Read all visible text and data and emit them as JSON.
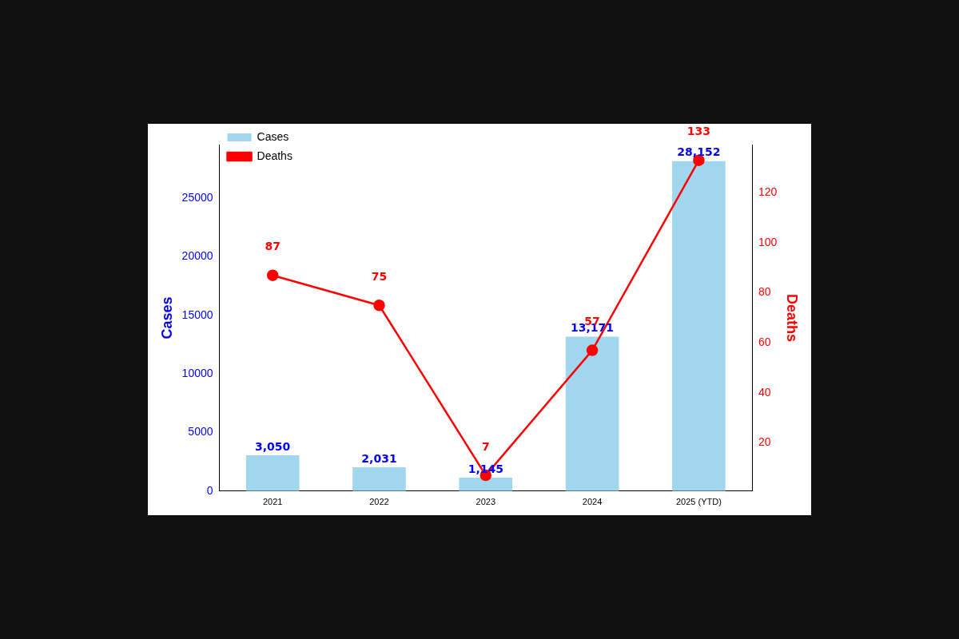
{
  "chart_data": {
    "type": "bar",
    "categories": [
      "2021",
      "2022",
      "2023",
      "2024",
      "2025 (YTD)"
    ],
    "series": [
      {
        "name": "Cases",
        "color": "#a0d6ee",
        "values": [
          3050,
          2031,
          1145,
          13171,
          28152
        ],
        "value_labels": [
          "3,050",
          "2,031",
          "1,145",
          "13,171",
          "28,152"
        ]
      },
      {
        "name": "Deaths",
        "type": "line",
        "axis": "y2",
        "color": "#ff0000",
        "values": [
          87,
          75,
          7,
          57,
          133
        ],
        "value_labels": [
          "87",
          "75",
          "7",
          "57",
          "133"
        ]
      }
    ],
    "ylabel": "Cases",
    "y2label": "Deaths",
    "ylim": [
      0,
      29560
    ],
    "yticks": [
      0,
      5000,
      10000,
      15000,
      20000,
      25000
    ],
    "y2lim": [
      0.7,
      139.3
    ],
    "y2ticks": [
      20,
      40,
      60,
      80,
      100,
      120
    ],
    "legend": "top left",
    "marker": "circle",
    "line_style": "solid",
    "grid": false
  }
}
